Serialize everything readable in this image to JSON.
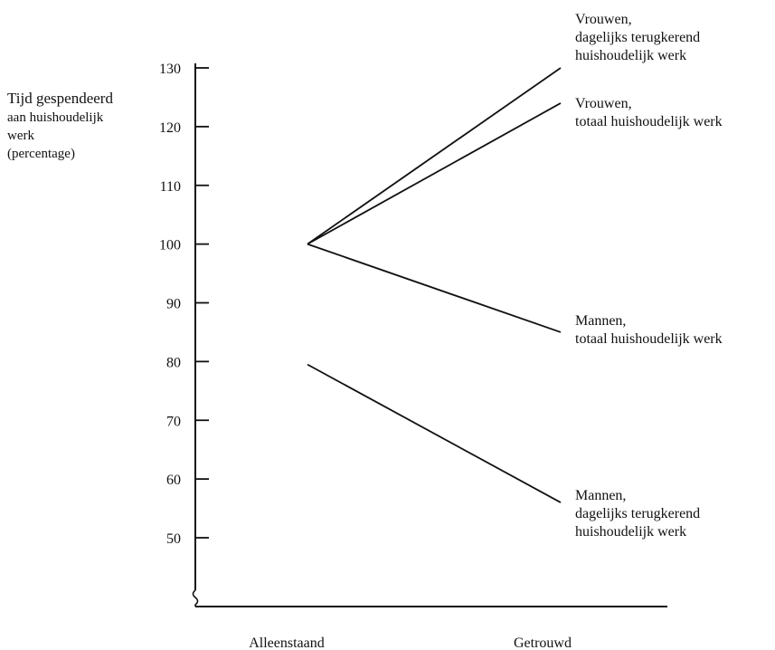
{
  "chart_data": {
    "type": "line",
    "categories": [
      "Alleenstaand",
      "Getrouwd"
    ],
    "ylabel_lines": [
      "Tijd gespendeerd",
      "aan huishoudelijk",
      "werk",
      "(percentage)"
    ],
    "yticks": [
      50,
      60,
      70,
      80,
      90,
      100,
      110,
      120,
      130
    ],
    "ylim": [
      41,
      130
    ],
    "grid": false,
    "series": [
      {
        "label_lines": [
          "Vrouwen,",
          "dagelijks terugkerend",
          "huishoudelijk werk"
        ],
        "values": [
          100,
          130
        ]
      },
      {
        "label_lines": [
          "Vrouwen,",
          "totaal huishoudelijk werk"
        ],
        "values": [
          100,
          124
        ]
      },
      {
        "label_lines": [
          "Mannen,",
          "totaal huishoudelijk werk"
        ],
        "values": [
          100,
          85
        ]
      },
      {
        "label_lines": [
          "Mannen,",
          "dagelijks terugkerend",
          "huishoudelijk werk"
        ],
        "values": [
          79.5,
          56
        ]
      }
    ]
  }
}
